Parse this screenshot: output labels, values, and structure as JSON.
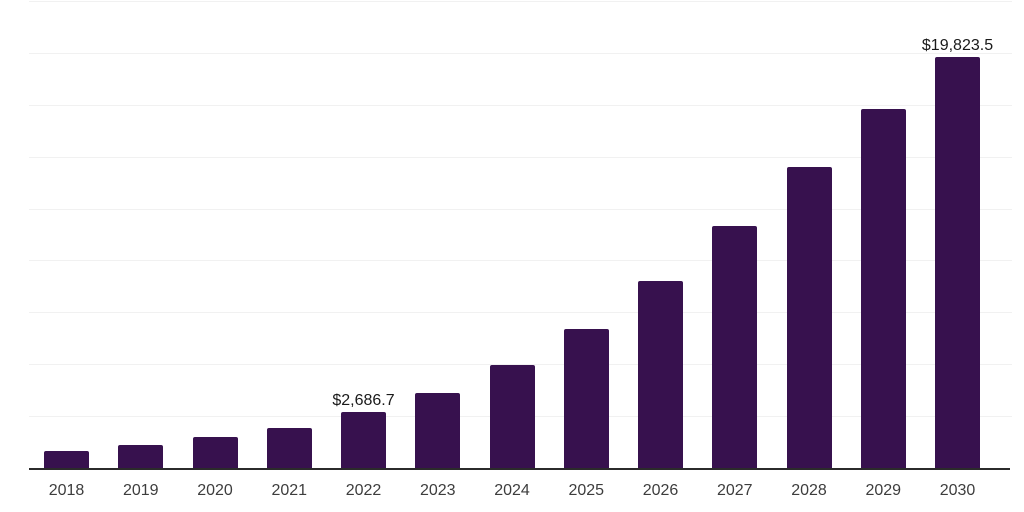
{
  "chart_data": {
    "type": "bar",
    "title": "",
    "xlabel": "",
    "ylabel": "",
    "categories": [
      "2018",
      "2019",
      "2020",
      "2021",
      "2022",
      "2023",
      "2024",
      "2025",
      "2026",
      "2027",
      "2028",
      "2029",
      "2030"
    ],
    "values": [
      840,
      1100,
      1490,
      1920,
      2686.7,
      3610,
      4950,
      6680,
      9000,
      11640,
      14520,
      17310,
      19823.5
    ],
    "ylim": [
      0,
      22500
    ],
    "gridline_step": 2500,
    "grid": "horizontal",
    "legend_position": "none",
    "y_axis_labels_visible": false,
    "data_labels": [
      {
        "category": "2022",
        "text": "$2,686.7"
      },
      {
        "category": "2030",
        "text": "$19,823.5"
      }
    ],
    "colors": {
      "bar": "#37114E",
      "axis_line": "#2b2b2b",
      "gridline": "#f1f1f1",
      "tick_label": "#3d3d3d",
      "data_label": "#1a1a1a",
      "background": "#ffffff"
    }
  }
}
